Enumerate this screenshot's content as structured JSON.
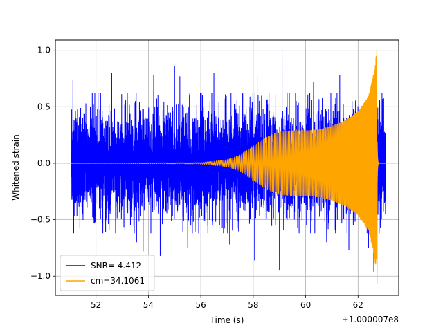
{
  "chart_data": {
    "type": "line",
    "title": "",
    "xlabel": "Time (s)",
    "ylabel": "Whitened strain",
    "offset_label": "+1.000007e8",
    "xlim": [
      50.45,
      63.55
    ],
    "ylim": [
      -1.17,
      1.09
    ],
    "xticks": [
      52,
      54,
      56,
      58,
      60,
      62
    ],
    "yticks": [
      -1.0,
      -0.5,
      0.0,
      0.5,
      1.0
    ],
    "xtick_labels": [
      "52",
      "54",
      "56",
      "58",
      "60",
      "62"
    ],
    "ytick_labels": [
      "−1.0",
      "−0.5",
      "0.0",
      "0.5",
      "1.0"
    ],
    "grid": true,
    "legend_position": "lower-left",
    "series": [
      {
        "name": "SNR= 4.412",
        "color": "#0000ff",
        "kind": "noise",
        "x_start": 51.05,
        "x_end": 63.05,
        "typical_amplitude": 0.42,
        "peaks": [
          {
            "x": 51.12,
            "y": 0.74
          },
          {
            "x": 51.15,
            "y": -0.62
          },
          {
            "x": 52.6,
            "y": 0.8
          },
          {
            "x": 53.55,
            "y": -0.7
          },
          {
            "x": 53.8,
            "y": -0.78
          },
          {
            "x": 54.2,
            "y": 0.78
          },
          {
            "x": 54.45,
            "y": -0.82
          },
          {
            "x": 55.0,
            "y": 0.86
          },
          {
            "x": 55.2,
            "y": 0.77
          },
          {
            "x": 55.5,
            "y": -0.75
          },
          {
            "x": 56.5,
            "y": 0.8
          },
          {
            "x": 57.1,
            "y": -0.72
          },
          {
            "x": 58.05,
            "y": -0.86
          },
          {
            "x": 58.15,
            "y": 0.78
          },
          {
            "x": 59.0,
            "y": -0.95
          },
          {
            "x": 59.1,
            "y": 1.0
          },
          {
            "x": 60.3,
            "y": 0.72
          },
          {
            "x": 60.8,
            "y": -0.7
          },
          {
            "x": 61.3,
            "y": 0.78
          },
          {
            "x": 61.65,
            "y": -0.77
          },
          {
            "x": 62.4,
            "y": -0.75
          },
          {
            "x": 62.6,
            "y": -0.96
          }
        ]
      },
      {
        "name": "cm=34.1061",
        "color": "#ffa500",
        "kind": "chirp",
        "x_start": 51.05,
        "x_merger": 62.72,
        "x_end": 63.05,
        "envelope": [
          {
            "x": 51.05,
            "y": 0.0
          },
          {
            "x": 56.0,
            "y": 0.005
          },
          {
            "x": 57.0,
            "y": 0.03
          },
          {
            "x": 57.5,
            "y": 0.07
          },
          {
            "x": 58.0,
            "y": 0.15
          },
          {
            "x": 58.5,
            "y": 0.23
          },
          {
            "x": 59.0,
            "y": 0.28
          },
          {
            "x": 59.5,
            "y": 0.29
          },
          {
            "x": 60.0,
            "y": 0.29
          },
          {
            "x": 60.5,
            "y": 0.3
          },
          {
            "x": 61.0,
            "y": 0.33
          },
          {
            "x": 61.5,
            "y": 0.38
          },
          {
            "x": 62.0,
            "y": 0.46
          },
          {
            "x": 62.4,
            "y": 0.6
          },
          {
            "x": 62.6,
            "y": 0.8
          },
          {
            "x": 62.72,
            "y": 1.0
          }
        ],
        "merger_max": 1.0,
        "merger_min": -1.07
      }
    ]
  }
}
